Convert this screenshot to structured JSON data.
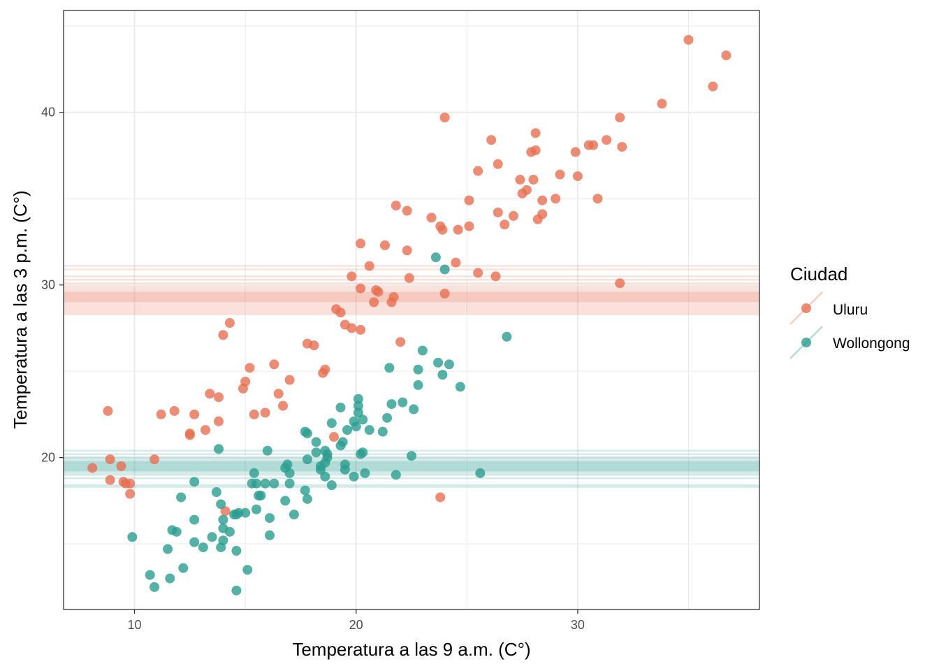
{
  "chart_data": {
    "type": "scatter",
    "xlabel": "Temperatura a las 9 a.m. (C°)",
    "ylabel": "Temperatura a las 3 p.m. (C°)",
    "xlim": [
      6.8,
      38.2
    ],
    "ylim": [
      11.2,
      45.9
    ],
    "x_ticks": [
      10,
      20,
      30
    ],
    "y_ticks": [
      20,
      30,
      40
    ],
    "grid": true,
    "legend": {
      "title": "Ciudad",
      "position": "right",
      "entries": [
        "Uluru",
        "Wollongong"
      ]
    },
    "series": [
      {
        "name": "Uluru",
        "color": "#E76F51",
        "points": [
          [
            35.0,
            44.2
          ],
          [
            36.7,
            43.3
          ],
          [
            36.1,
            41.5
          ],
          [
            33.8,
            40.5
          ],
          [
            24.0,
            39.7
          ],
          [
            31.9,
            39.7
          ],
          [
            26.1,
            38.4
          ],
          [
            28.1,
            38.8
          ],
          [
            31.3,
            38.4
          ],
          [
            30.5,
            38.1
          ],
          [
            30.7,
            38.1
          ],
          [
            32.0,
            38.0
          ],
          [
            27.9,
            37.7
          ],
          [
            28.1,
            37.8
          ],
          [
            29.9,
            37.7
          ],
          [
            26.4,
            37.0
          ],
          [
            25.5,
            36.6
          ],
          [
            29.2,
            36.4
          ],
          [
            30.0,
            36.3
          ],
          [
            27.4,
            36.1
          ],
          [
            28.0,
            36.1
          ],
          [
            27.5,
            35.3
          ],
          [
            27.7,
            35.5
          ],
          [
            29.0,
            35.0
          ],
          [
            30.9,
            35.0
          ],
          [
            25.1,
            34.9
          ],
          [
            28.4,
            34.9
          ],
          [
            21.8,
            34.6
          ],
          [
            22.3,
            34.3
          ],
          [
            26.4,
            34.2
          ],
          [
            27.1,
            34.0
          ],
          [
            28.4,
            34.1
          ],
          [
            23.4,
            33.9
          ],
          [
            28.2,
            33.8
          ],
          [
            23.8,
            33.4
          ],
          [
            23.9,
            33.2
          ],
          [
            24.6,
            33.2
          ],
          [
            25.1,
            33.4
          ],
          [
            26.7,
            33.5
          ],
          [
            20.2,
            32.4
          ],
          [
            21.3,
            32.3
          ],
          [
            22.3,
            32.0
          ],
          [
            24.5,
            31.3
          ],
          [
            20.6,
            31.1
          ],
          [
            19.8,
            30.5
          ],
          [
            25.5,
            30.7
          ],
          [
            26.3,
            30.5
          ],
          [
            22.4,
            30.4
          ],
          [
            31.9,
            30.1
          ],
          [
            20.2,
            29.8
          ],
          [
            20.9,
            29.7
          ],
          [
            21.0,
            29.6
          ],
          [
            24.0,
            29.5
          ],
          [
            21.7,
            29.3
          ],
          [
            20.8,
            29.0
          ],
          [
            21.6,
            29.0
          ],
          [
            19.1,
            28.6
          ],
          [
            19.3,
            28.4
          ],
          [
            19.5,
            27.7
          ],
          [
            19.8,
            27.5
          ],
          [
            20.2,
            27.4
          ],
          [
            14.3,
            27.8
          ],
          [
            14.0,
            27.1
          ],
          [
            22.0,
            26.7
          ],
          [
            17.8,
            26.6
          ],
          [
            18.1,
            26.5
          ],
          [
            18.6,
            25.1
          ],
          [
            16.3,
            25.4
          ],
          [
            15.2,
            25.2
          ],
          [
            18.5,
            24.9
          ],
          [
            15.0,
            24.4
          ],
          [
            14.9,
            24.0
          ],
          [
            17.0,
            24.5
          ],
          [
            13.4,
            23.7
          ],
          [
            13.8,
            23.5
          ],
          [
            16.5,
            23.7
          ],
          [
            16.7,
            23.0
          ],
          [
            8.8,
            22.7
          ],
          [
            11.8,
            22.7
          ],
          [
            11.2,
            22.5
          ],
          [
            12.7,
            22.5
          ],
          [
            15.4,
            22.5
          ],
          [
            15.9,
            22.6
          ],
          [
            13.8,
            22.1
          ],
          [
            13.2,
            21.6
          ],
          [
            12.5,
            21.4
          ],
          [
            12.5,
            21.3
          ],
          [
            19.0,
            21.2
          ],
          [
            8.9,
            19.9
          ],
          [
            10.9,
            19.9
          ],
          [
            8.1,
            19.4
          ],
          [
            9.4,
            19.5
          ],
          [
            8.9,
            18.7
          ],
          [
            9.5,
            18.6
          ],
          [
            9.6,
            18.5
          ],
          [
            9.8,
            18.5
          ],
          [
            9.8,
            17.9
          ],
          [
            14.1,
            16.9
          ],
          [
            23.8,
            17.7
          ]
        ]
      },
      {
        "name": "Wollongong",
        "color": "#2A9D8F",
        "points": [
          [
            23.6,
            31.6
          ],
          [
            24.0,
            30.9
          ],
          [
            26.8,
            27.0
          ],
          [
            23.0,
            26.2
          ],
          [
            23.7,
            25.5
          ],
          [
            24.2,
            25.4
          ],
          [
            21.5,
            25.2
          ],
          [
            22.8,
            25.1
          ],
          [
            23.9,
            24.8
          ],
          [
            24.7,
            24.1
          ],
          [
            22.8,
            24.2
          ],
          [
            20.1,
            23.4
          ],
          [
            20.1,
            23.0
          ],
          [
            21.6,
            23.1
          ],
          [
            22.1,
            23.2
          ],
          [
            19.3,
            22.9
          ],
          [
            22.6,
            22.8
          ],
          [
            20.1,
            22.6
          ],
          [
            21.4,
            22.3
          ],
          [
            20.3,
            22.2
          ],
          [
            19.9,
            22.1
          ],
          [
            18.9,
            22.0
          ],
          [
            20.0,
            21.8
          ],
          [
            19.6,
            21.6
          ],
          [
            20.6,
            21.6
          ],
          [
            21.2,
            21.5
          ],
          [
            17.7,
            21.5
          ],
          [
            17.8,
            21.4
          ],
          [
            18.2,
            20.9
          ],
          [
            19.4,
            20.9
          ],
          [
            19.3,
            20.7
          ],
          [
            13.8,
            20.5
          ],
          [
            16.0,
            20.4
          ],
          [
            18.6,
            20.4
          ],
          [
            18.2,
            20.3
          ],
          [
            20.2,
            20.2
          ],
          [
            20.3,
            20.3
          ],
          [
            18.7,
            20.2
          ],
          [
            18.7,
            20.0
          ],
          [
            22.5,
            20.1
          ],
          [
            17.8,
            19.9
          ],
          [
            18.6,
            19.7
          ],
          [
            18.4,
            19.5
          ],
          [
            16.9,
            19.6
          ],
          [
            16.8,
            19.4
          ],
          [
            19.5,
            19.6
          ],
          [
            18.4,
            19.3
          ],
          [
            19.5,
            19.3
          ],
          [
            15.4,
            19.1
          ],
          [
            17.0,
            19.1
          ],
          [
            20.4,
            19.1
          ],
          [
            21.8,
            19.0
          ],
          [
            25.6,
            19.1
          ],
          [
            18.6,
            18.9
          ],
          [
            19.9,
            18.9
          ],
          [
            12.7,
            18.6
          ],
          [
            15.3,
            18.5
          ],
          [
            15.5,
            18.5
          ],
          [
            15.9,
            18.5
          ],
          [
            16.3,
            18.5
          ],
          [
            17.0,
            18.5
          ],
          [
            18.9,
            18.4
          ],
          [
            13.7,
            18.0
          ],
          [
            17.7,
            18.1
          ],
          [
            15.6,
            17.8
          ],
          [
            15.7,
            17.8
          ],
          [
            17.8,
            17.6
          ],
          [
            12.1,
            17.7
          ],
          [
            16.8,
            17.5
          ],
          [
            13.9,
            17.3
          ],
          [
            15.5,
            17.0
          ],
          [
            15.0,
            16.8
          ],
          [
            14.7,
            16.8
          ],
          [
            14.6,
            16.7
          ],
          [
            14.5,
            16.7
          ],
          [
            17.2,
            16.7
          ],
          [
            12.7,
            16.4
          ],
          [
            14.0,
            16.4
          ],
          [
            16.1,
            16.5
          ],
          [
            11.7,
            15.8
          ],
          [
            11.9,
            15.7
          ],
          [
            14.0,
            15.9
          ],
          [
            14.3,
            15.7
          ],
          [
            16.1,
            15.5
          ],
          [
            9.9,
            15.4
          ],
          [
            13.5,
            15.4
          ],
          [
            14.0,
            15.2
          ],
          [
            12.7,
            15.1
          ],
          [
            13.1,
            14.8
          ],
          [
            13.9,
            14.8
          ],
          [
            11.5,
            14.7
          ],
          [
            14.6,
            14.6
          ],
          [
            12.2,
            13.6
          ],
          [
            15.1,
            13.5
          ],
          [
            10.7,
            13.2
          ],
          [
            11.6,
            13.0
          ],
          [
            10.9,
            12.5
          ],
          [
            14.6,
            12.3
          ]
        ]
      }
    ],
    "hlines": [
      {
        "series": "Uluru",
        "values": [
          31.1,
          30.9,
          30.5,
          30.3,
          30.1,
          29.9,
          29.8,
          29.7,
          29.6,
          29.5,
          29.4,
          29.3,
          29.2,
          29.1,
          29.0,
          28.9,
          28.8,
          28.7,
          28.6,
          28.5,
          28.4,
          28.3,
          29.45,
          29.25,
          29.05,
          29.55,
          29.35,
          29.15
        ]
      },
      {
        "series": "Wollongong",
        "values": [
          20.4,
          20.2,
          20.0,
          19.9,
          19.8,
          19.7,
          19.6,
          19.5,
          19.4,
          19.3,
          19.2,
          19.1,
          19.0,
          18.8,
          18.4,
          18.3,
          19.65,
          19.45,
          19.55,
          19.35,
          19.75,
          19.25
        ]
      }
    ]
  }
}
